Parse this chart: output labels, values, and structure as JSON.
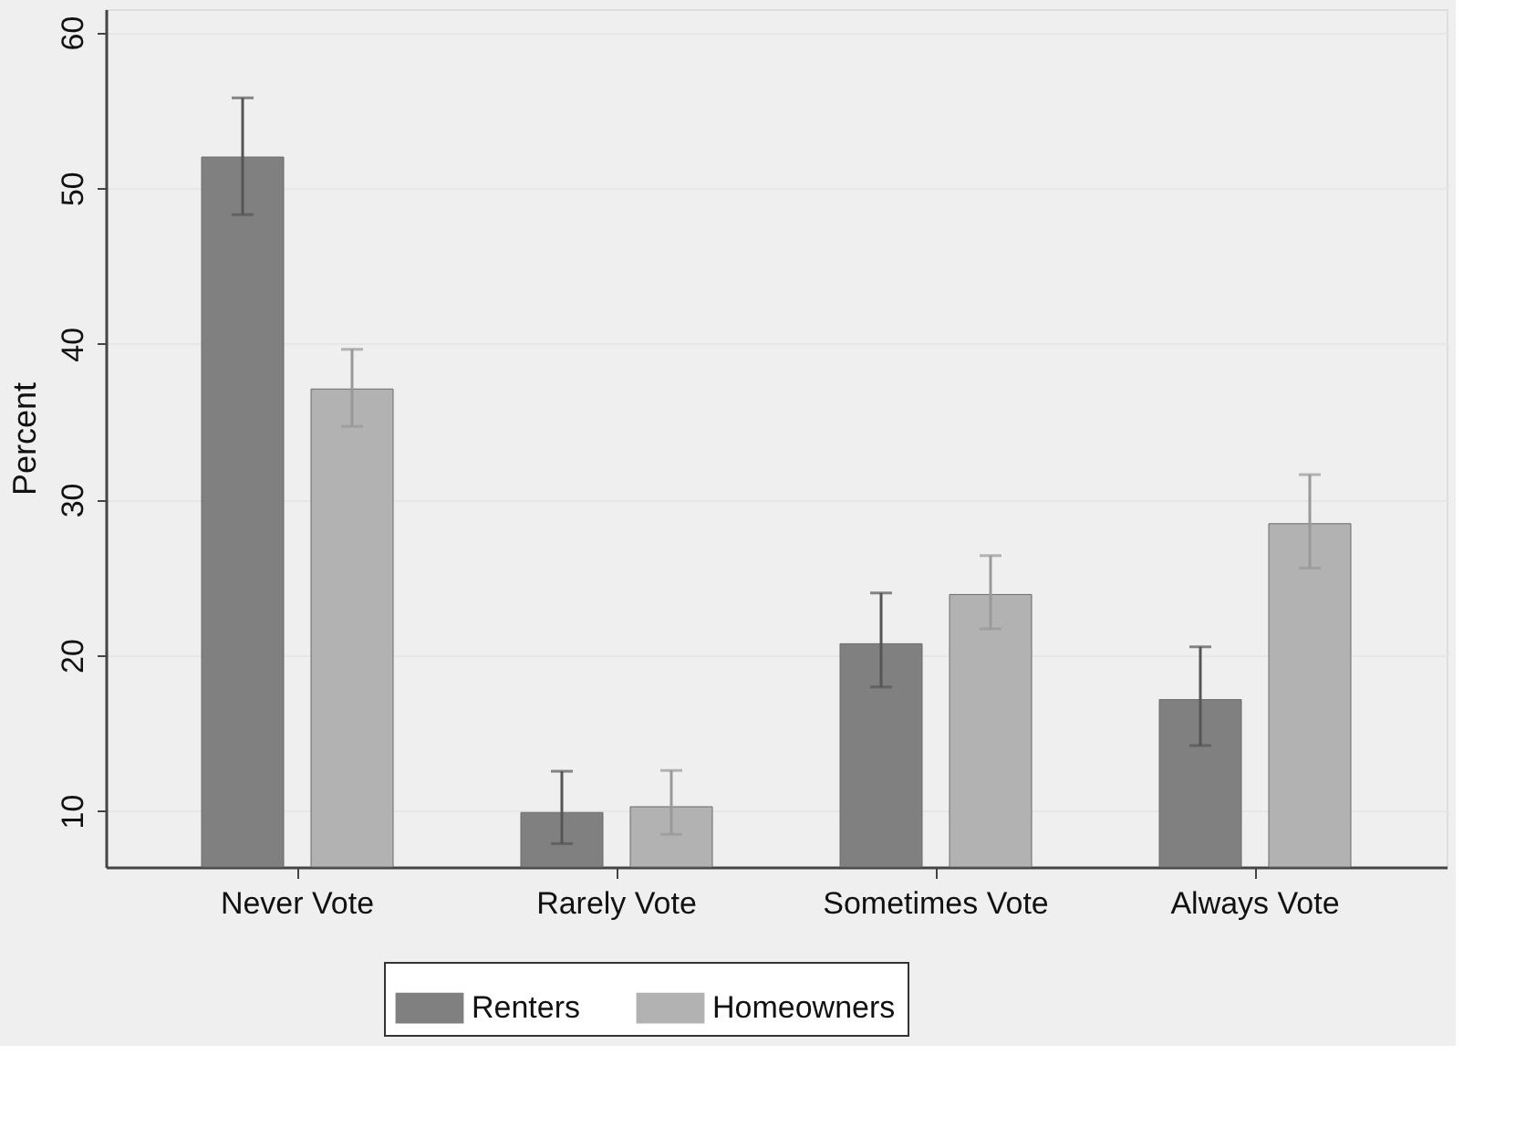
{
  "chart_data": {
    "type": "bar",
    "ylabel": "Percent",
    "categories": [
      "Never Vote",
      "Rarely Vote",
      "Sometimes Vote",
      "Always Vote"
    ],
    "series": [
      {
        "name": "Renters",
        "color": "#808080",
        "values": [
          52.0,
          9.9,
          20.74,
          17.15
        ],
        "errors": [
          [
            48.3,
            55.8
          ],
          [
            7.9,
            12.55
          ],
          [
            17.96,
            24.0
          ],
          [
            14.2,
            20.54
          ]
        ]
      },
      {
        "name": "Homeowners",
        "color": "#b2b2b2",
        "values": [
          37.1,
          10.27,
          23.9,
          28.45
        ],
        "errors": [
          [
            34.7,
            39.65
          ],
          [
            8.5,
            12.6
          ],
          [
            21.7,
            26.4
          ],
          [
            25.6,
            31.6
          ]
        ]
      }
    ],
    "ylim": [
      6.4,
      61.5
    ],
    "yticks": [
      10,
      20,
      30,
      40,
      50,
      60
    ],
    "grid": "y",
    "legend": "bottom"
  }
}
